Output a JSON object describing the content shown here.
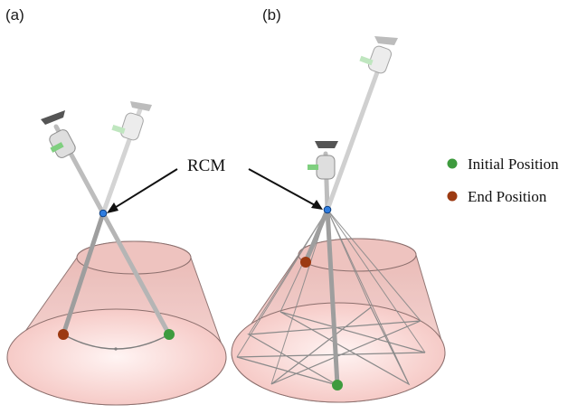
{
  "panels": [
    {
      "label": "(a)"
    },
    {
      "label": "(b)"
    }
  ],
  "annotation": {
    "label": "RCM"
  },
  "legend": [
    {
      "label": "Initial Position",
      "color": "#3e9b3e"
    },
    {
      "label": "End Position",
      "color": "#9c3a12"
    }
  ],
  "colors": {
    "cone_fill": "#f3c9c6",
    "cone_edge": "#8c6f6d",
    "instrument": "#c8c8c8",
    "rcm_point": "#2f7de0"
  }
}
